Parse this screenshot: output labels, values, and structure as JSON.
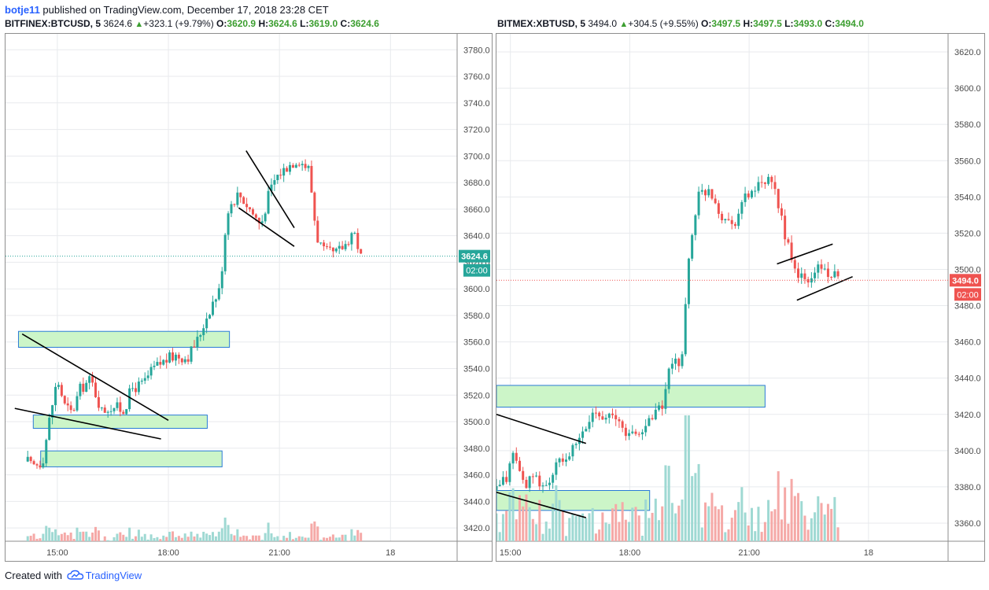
{
  "header": {
    "author": "botje11",
    "published_text": "published on TradingView.com, December 17, 2018 23:28 CET"
  },
  "footer": {
    "created_text": "Created with",
    "brand": "TradingView"
  },
  "colors": {
    "up": "#26a69a",
    "down": "#ef5350",
    "zone_fill": "#ccf5c8",
    "zone_stroke": "#2a7bd6",
    "trendline": "#000000",
    "grid": "#e8eaed"
  },
  "chart_data": [
    {
      "type": "candlestick",
      "symbol": "BITFINEX:BTCUSD, 5",
      "last": "3624.6",
      "change": "+323.1 (+9.79%)",
      "ohlc": {
        "O": "3620.9",
        "H": "3624.6",
        "L": "3619.0",
        "C": "3624.6"
      },
      "price_label": "3624.6",
      "countdown": "02:00",
      "price_line_color": "#26a69a",
      "ylim": [
        3410,
        3792
      ],
      "y_ticks": [
        "3420.0",
        "3440.0",
        "3460.0",
        "3480.0",
        "3500.0",
        "3520.0",
        "3540.0",
        "3560.0",
        "3580.0",
        "3600.0",
        "3620.0",
        "3640.0",
        "3660.0",
        "3680.0",
        "3700.0",
        "3720.0",
        "3740.0",
        "3760.0",
        "3780.0"
      ],
      "x_ticks": [
        {
          "label": "15:00",
          "time": 15.0
        },
        {
          "label": "18:00",
          "time": 18.0
        },
        {
          "label": "21:00",
          "time": 21.0
        },
        {
          "label": "18",
          "time": 24.0
        }
      ],
      "xlim": [
        13.6,
        25.8
      ],
      "start_time": 14.2,
      "anchors": [
        [
          14.2,
          3470
        ],
        [
          14.3,
          3466
        ],
        [
          14.6,
          3470
        ],
        [
          14.8,
          3504
        ],
        [
          15.0,
          3532
        ],
        [
          15.2,
          3512
        ],
        [
          15.4,
          3506
        ],
        [
          15.6,
          3524
        ],
        [
          15.9,
          3532
        ],
        [
          16.2,
          3508
        ],
        [
          16.5,
          3512
        ],
        [
          16.8,
          3508
        ],
        [
          17.0,
          3525
        ],
        [
          17.3,
          3528
        ],
        [
          17.6,
          3540
        ],
        [
          17.9,
          3546
        ],
        [
          18.2,
          3550
        ],
        [
          18.5,
          3548
        ],
        [
          18.8,
          3562
        ],
        [
          19.0,
          3577
        ],
        [
          19.2,
          3590
        ],
        [
          19.4,
          3600
        ],
        [
          19.5,
          3634
        ],
        [
          19.6,
          3660
        ],
        [
          19.9,
          3672
        ],
        [
          20.2,
          3660
        ],
        [
          20.5,
          3648
        ],
        [
          20.7,
          3670
        ],
        [
          20.9,
          3684
        ],
        [
          21.2,
          3692
        ],
        [
          21.5,
          3698
        ],
        [
          21.8,
          3690
        ],
        [
          22.0,
          3640
        ],
        [
          22.2,
          3628
        ],
        [
          22.5,
          3626
        ],
        [
          22.8,
          3634
        ],
        [
          23.0,
          3645
        ],
        [
          23.2,
          3624
        ]
      ],
      "volume_max": 200,
      "zones": [
        {
          "t0": 13.95,
          "t1": 19.65,
          "p0": 3556,
          "p1": 3568
        },
        {
          "t0": 14.35,
          "t1": 19.05,
          "p0": 3495,
          "p1": 3505
        },
        {
          "t0": 14.55,
          "t1": 19.45,
          "p0": 3466,
          "p1": 3478
        }
      ],
      "trendlines": [
        {
          "t0": 14.05,
          "p0": 3566,
          "t1": 18.0,
          "p1": 3501
        },
        {
          "t0": 13.85,
          "p0": 3510,
          "t1": 17.8,
          "p1": 3487
        },
        {
          "t0": 20.1,
          "p0": 3704,
          "t1": 21.4,
          "p1": 3646
        },
        {
          "t0": 19.9,
          "p0": 3661,
          "t1": 21.4,
          "p1": 3632
        }
      ]
    },
    {
      "type": "candlestick",
      "symbol": "BITMEX:XBTUSD, 5",
      "last": "3494.0",
      "change": "+304.5 (+9.55%)",
      "ohlc": {
        "O": "3497.5",
        "H": "3497.5",
        "L": "3493.0",
        "C": "3494.0"
      },
      "price_label": "3494.0",
      "countdown": "02:00",
      "price_line_color": "#ef5350",
      "ylim": [
        3350,
        3630
      ],
      "y_ticks": [
        "3360.0",
        "3380.0",
        "3400.0",
        "3420.0",
        "3440.0",
        "3460.0",
        "3480.0",
        "3500.0",
        "3520.0",
        "3540.0",
        "3560.0",
        "3580.0",
        "3600.0",
        "3620.0"
      ],
      "x_ticks": [
        {
          "label": "15:00",
          "time": 15.0
        },
        {
          "label": "18:00",
          "time": 18.0
        },
        {
          "label": "21:00",
          "time": 21.0
        },
        {
          "label": "18",
          "time": 24.0
        }
      ],
      "xlim": [
        14.65,
        26.0
      ],
      "start_time": 14.65,
      "anchors": [
        [
          14.65,
          3378
        ],
        [
          14.9,
          3385
        ],
        [
          15.1,
          3400
        ],
        [
          15.3,
          3382
        ],
        [
          15.6,
          3384
        ],
        [
          15.9,
          3380
        ],
        [
          16.2,
          3393
        ],
        [
          16.5,
          3398
        ],
        [
          16.8,
          3408
        ],
        [
          17.1,
          3422
        ],
        [
          17.4,
          3420
        ],
        [
          17.7,
          3416
        ],
        [
          18.0,
          3408
        ],
        [
          18.3,
          3410
        ],
        [
          18.6,
          3422
        ],
        [
          18.8,
          3423
        ],
        [
          19.0,
          3445
        ],
        [
          19.3,
          3450
        ],
        [
          19.5,
          3510
        ],
        [
          19.7,
          3540
        ],
        [
          20.0,
          3545
        ],
        [
          20.3,
          3530
        ],
        [
          20.6,
          3525
        ],
        [
          20.9,
          3540
        ],
        [
          21.2,
          3545
        ],
        [
          21.5,
          3548
        ],
        [
          21.7,
          3540
        ],
        [
          21.9,
          3520
        ],
        [
          22.1,
          3500
        ],
        [
          22.3,
          3496
        ],
        [
          22.5,
          3492
        ],
        [
          22.7,
          3502
        ],
        [
          22.9,
          3500
        ],
        [
          23.1,
          3496
        ],
        [
          23.3,
          3494
        ]
      ],
      "volume_max": 105,
      "zones": [
        {
          "t0": 14.65,
          "t1": 21.4,
          "p0": 3424,
          "p1": 3436
        },
        {
          "t0": 14.65,
          "t1": 18.5,
          "p0": 3367,
          "p1": 3378
        }
      ],
      "trendlines": [
        {
          "t0": 14.65,
          "p0": 3420,
          "t1": 16.9,
          "p1": 3404
        },
        {
          "t0": 14.65,
          "p0": 3377,
          "t1": 16.9,
          "p1": 3363
        },
        {
          "t0": 21.7,
          "p0": 3503,
          "t1": 23.1,
          "p1": 3514
        },
        {
          "t0": 22.2,
          "p0": 3483,
          "t1": 23.6,
          "p1": 3496
        }
      ]
    }
  ]
}
